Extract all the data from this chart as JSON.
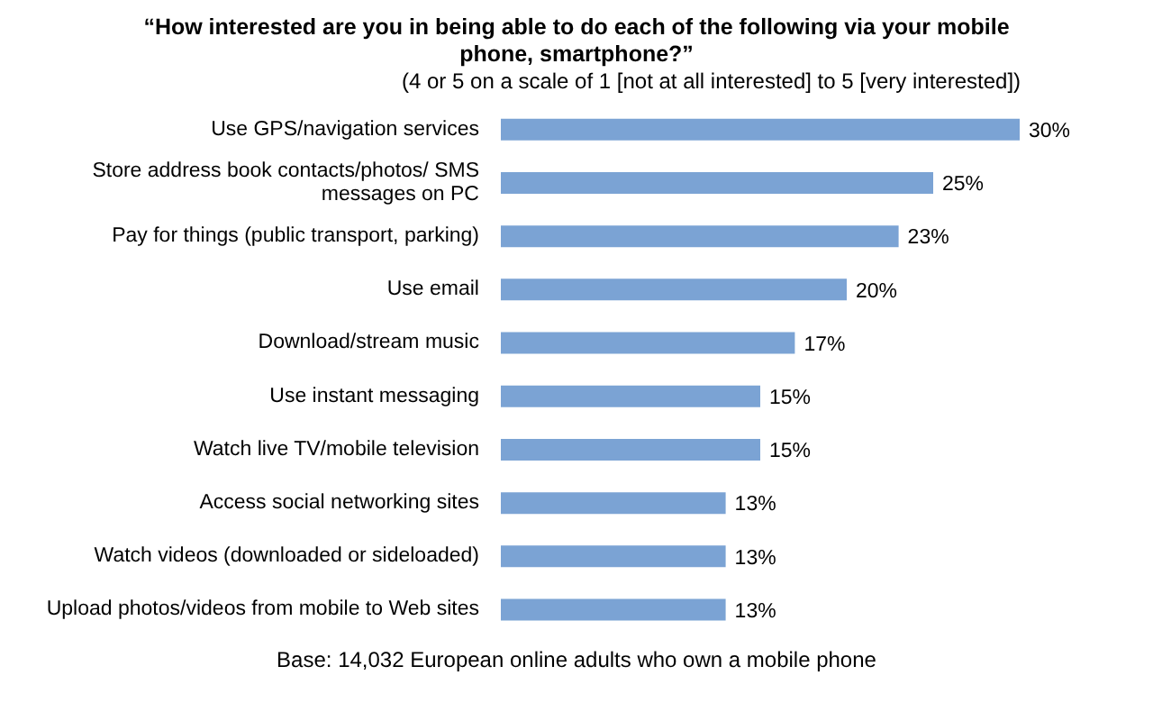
{
  "chart_data": {
    "type": "bar",
    "orientation": "horizontal",
    "title": "“How interested are you in being able to do each of the following via your mobile phone, smartphone?”",
    "subtitle": "(4 or 5 on a scale of 1 [not at all interested] to 5 [very interested])",
    "categories": [
      "Use GPS/navigation services",
      "Store address book contacts/photos/ SMS messages on PC",
      "Pay for things (public transport, parking)",
      "Use email",
      "Download/stream music",
      "Use instant messaging",
      "Watch live TV/mobile television",
      "Access social networking sites",
      "Watch videos (downloaded or sideloaded)",
      "Upload photos/videos from mobile to Web sites"
    ],
    "values": [
      30,
      25,
      23,
      20,
      17,
      15,
      15,
      13,
      13,
      13
    ],
    "value_labels": [
      "30%",
      "25%",
      "23%",
      "20%",
      "17%",
      "15%",
      "15%",
      "13%",
      "13%",
      "13%"
    ],
    "color": "#7ba3d4",
    "annotations": [
      "Base: 14,032 European online adults who own a mobile phone"
    ]
  }
}
